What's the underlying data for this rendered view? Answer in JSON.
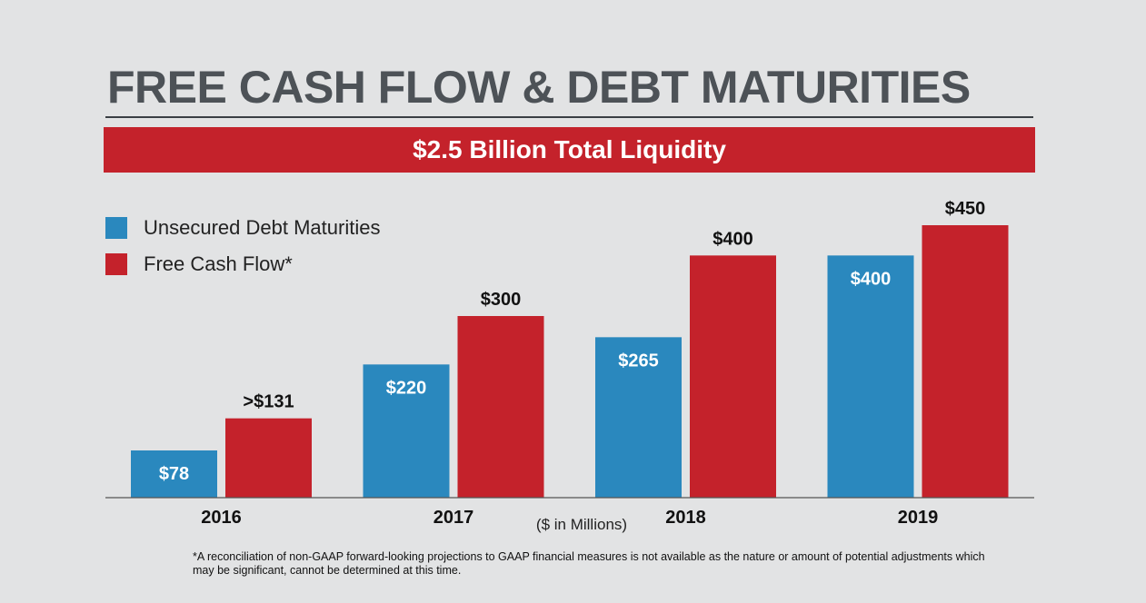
{
  "title": "FREE CASH FLOW & DEBT MATURITIES",
  "banner": "$2.5 Billion Total Liquidity",
  "colors": {
    "blue": "#2a88be",
    "red": "#c4222b",
    "title": "#4d5257"
  },
  "chart_data": {
    "type": "bar",
    "categories": [
      "2016",
      "2017",
      "2018",
      "2019"
    ],
    "series": [
      {
        "name": "Unsecured Debt Maturities",
        "values": [
          78,
          220,
          265,
          400
        ],
        "labels": [
          "$78",
          "$220",
          "$265",
          "$400"
        ],
        "color": "#2a88be"
      },
      {
        "name": "Free Cash Flow*",
        "values": [
          131,
          300,
          400,
          450
        ],
        "labels": [
          ">$131",
          "$300",
          "$400",
          "$450"
        ],
        "color": "#c4222b"
      }
    ],
    "ylim": [
      0,
      480
    ],
    "unit_label": "($ in Millions)",
    "legend": "top-left"
  },
  "footnote": "*A reconciliation of non-GAAP forward-looking projections to GAAP financial measures is not available as the nature or amount of potential adjustments which may be significant, cannot be determined at this time."
}
